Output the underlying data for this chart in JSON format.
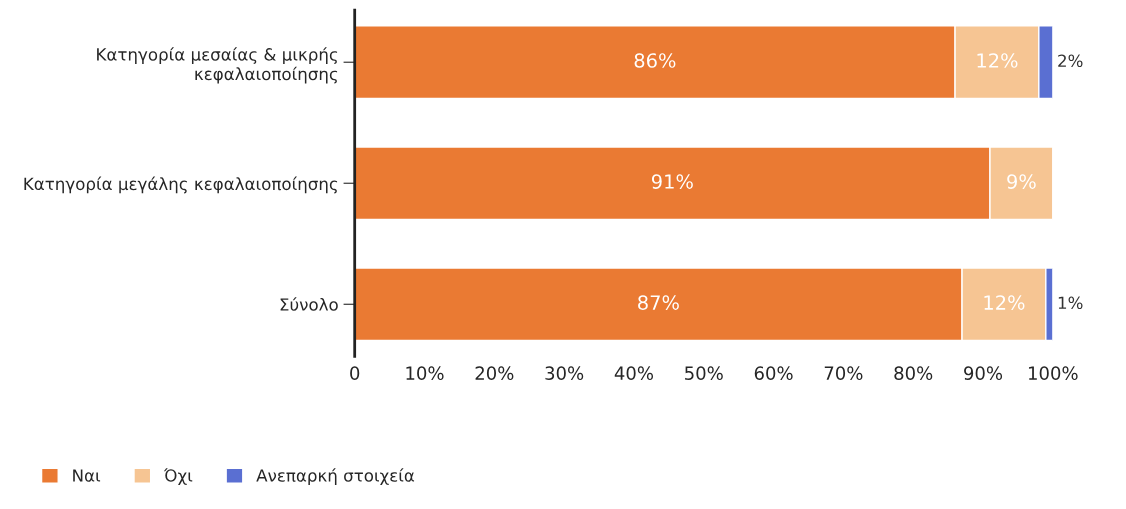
{
  "chart_data": {
    "type": "bar",
    "orientation": "horizontal",
    "stacked": true,
    "legend": "bottom left",
    "grid": false,
    "categories": [
      "Κατηγορία μεσαίας & μικρής\nκεφαλαιοποίησης",
      "Κατηγορία μεγάλης κεφαλαιοποίησης",
      "Σύνολο"
    ],
    "series": [
      {
        "name": "Ναι",
        "color": "#ea7a33",
        "values": [
          86,
          91,
          87
        ],
        "value_labels": [
          "86%",
          "91%",
          "87%"
        ]
      },
      {
        "name": "Όχι",
        "color": "#f6c593",
        "values": [
          12,
          9,
          12
        ],
        "value_labels": [
          "12%",
          "9%",
          "12%"
        ]
      },
      {
        "name": "Ανεπαρκή στοιχεία",
        "color": "#5a6fd2",
        "values": [
          2,
          null,
          1
        ],
        "value_labels": [
          "2%",
          null,
          "1%"
        ]
      }
    ],
    "xlim": [
      0,
      100
    ],
    "xticks": [
      0,
      {
        "value": 10,
        "label": "10%"
      },
      {
        "value": 20,
        "label": "20%"
      },
      {
        "value": 30,
        "label": "30%"
      },
      {
        "value": 40,
        "label": "40%"
      },
      {
        "value": 50,
        "label": "50%"
      },
      {
        "value": 60,
        "label": "60%"
      },
      {
        "value": 70,
        "label": "70%"
      },
      {
        "value": 80,
        "label": "80%"
      },
      {
        "value": 90,
        "label": "90%"
      },
      {
        "value": 100,
        "label": "100%"
      }
    ]
  }
}
